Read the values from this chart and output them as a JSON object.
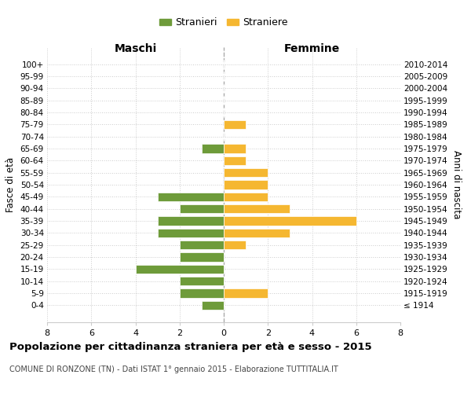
{
  "age_groups": [
    "100+",
    "95-99",
    "90-94",
    "85-89",
    "80-84",
    "75-79",
    "70-74",
    "65-69",
    "60-64",
    "55-59",
    "50-54",
    "45-49",
    "40-44",
    "35-39",
    "30-34",
    "25-29",
    "20-24",
    "15-19",
    "10-14",
    "5-9",
    "0-4"
  ],
  "birth_years": [
    "≤ 1914",
    "1915-1919",
    "1920-1924",
    "1925-1929",
    "1930-1934",
    "1935-1939",
    "1940-1944",
    "1945-1949",
    "1950-1954",
    "1955-1959",
    "1960-1964",
    "1965-1969",
    "1970-1974",
    "1975-1979",
    "1980-1984",
    "1985-1989",
    "1990-1994",
    "1995-1999",
    "2000-2004",
    "2005-2009",
    "2010-2014"
  ],
  "maschi": [
    0,
    0,
    0,
    0,
    0,
    0,
    0,
    1,
    0,
    0,
    0,
    3,
    2,
    3,
    3,
    2,
    2,
    4,
    2,
    2,
    1
  ],
  "femmine": [
    0,
    0,
    0,
    0,
    0,
    1,
    0,
    1,
    1,
    2,
    2,
    2,
    3,
    6,
    3,
    1,
    0,
    0,
    0,
    2,
    0
  ],
  "color_maschi": "#6e9b3a",
  "color_femmine": "#f5b731",
  "title": "Popolazione per cittadinanza straniera per età e sesso - 2015",
  "subtitle": "COMUNE DI RONZONE (TN) - Dati ISTAT 1° gennaio 2015 - Elaborazione TUTTITALIA.IT",
  "xlabel_left": "Maschi",
  "xlabel_right": "Femmine",
  "ylabel_left": "Fasce di età",
  "ylabel_right": "Anni di nascita",
  "legend_maschi": "Stranieri",
  "legend_femmine": "Straniere",
  "xlim": 8,
  "background_color": "#ffffff",
  "grid_color": "#cccccc",
  "bar_height": 0.75
}
